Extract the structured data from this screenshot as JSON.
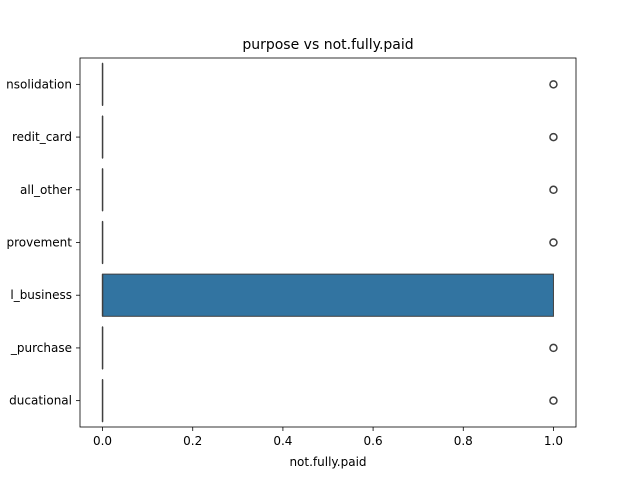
{
  "chart_data": {
    "type": "boxplot",
    "orientation": "horizontal",
    "title": "purpose vs not.fully.paid",
    "xlabel": "not.fully.paid",
    "ylabel": "",
    "xlim": [
      -0.05,
      1.05
    ],
    "xticks": [
      0.0,
      0.2,
      0.4,
      0.6,
      0.8,
      1.0
    ],
    "xtick_labels": [
      "0.0",
      "0.2",
      "0.4",
      "0.6",
      "0.8",
      "1.0"
    ],
    "categories_visible_text": [
      "nsolidation",
      "redit_card",
      "all_other",
      "provement",
      "l_business",
      "_purchase",
      "ducational"
    ],
    "grid": false,
    "box_color": "#3274a1",
    "edge_color": "#3f3f3f",
    "series": [
      {
        "category": "nsolidation",
        "min": 0,
        "q1": 0,
        "median": 0,
        "q3": 0,
        "max": 0,
        "outliers": [
          1
        ]
      },
      {
        "category": "redit_card",
        "min": 0,
        "q1": 0,
        "median": 0,
        "q3": 0,
        "max": 0,
        "outliers": [
          1
        ]
      },
      {
        "category": "all_other",
        "min": 0,
        "q1": 0,
        "median": 0,
        "q3": 0,
        "max": 0,
        "outliers": [
          1
        ]
      },
      {
        "category": "provement",
        "min": 0,
        "q1": 0,
        "median": 0,
        "q3": 0,
        "max": 0,
        "outliers": [
          1
        ]
      },
      {
        "category": "l_business",
        "min": 0,
        "q1": 0,
        "median": 0,
        "q3": 1,
        "max": 1,
        "outliers": []
      },
      {
        "category": "_purchase",
        "min": 0,
        "q1": 0,
        "median": 0,
        "q3": 0,
        "max": 0,
        "outliers": [
          1
        ]
      },
      {
        "category": "ducational",
        "min": 0,
        "q1": 0,
        "median": 0,
        "q3": 0,
        "max": 0,
        "outliers": [
          1
        ]
      }
    ]
  }
}
